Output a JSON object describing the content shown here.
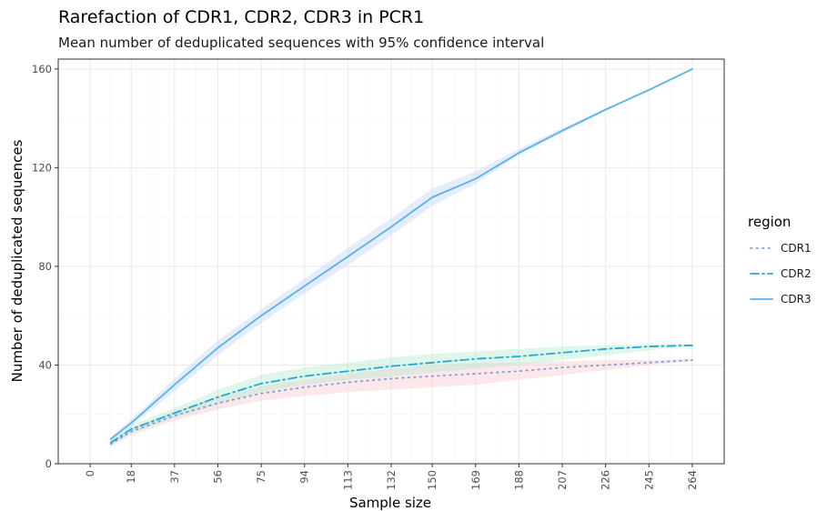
{
  "chart_data": {
    "type": "line",
    "title": "Rarefaction of CDR1, CDR2, CDR3 in PCR1",
    "subtitle": "Mean number of deduplicated sequences with 95% confidence interval",
    "xlabel": "Sample size",
    "ylabel": "Number of deduplicated sequences",
    "xlim": [
      -14,
      278
    ],
    "ylim": [
      0,
      164
    ],
    "x_ticks": [
      0,
      18,
      37,
      56,
      75,
      94,
      113,
      132,
      150,
      169,
      188,
      207,
      226,
      245,
      264
    ],
    "y_ticks": [
      0,
      40,
      80,
      120,
      160
    ],
    "grid": true,
    "legend": {
      "title": "region",
      "position": "right"
    },
    "colors": {
      "CDR1": "#7b9fd8",
      "CDR2": "#26a6d6",
      "CDR3": "#56b4e9"
    },
    "ribbon_colors": {
      "CDR1": "#f8cdd0",
      "CDR2": "#b9ecd0",
      "CDR3": "#c6d7fa"
    },
    "series": [
      {
        "name": "CDR1",
        "line_style": "dotted",
        "x": [
          9,
          18,
          37,
          56,
          75,
          94,
          113,
          132,
          150,
          169,
          188,
          207,
          226,
          245,
          264
        ],
        "y": [
          8,
          13,
          19.5,
          24.5,
          28.5,
          31,
          33,
          34.5,
          35.5,
          36.5,
          37.5,
          39,
          40,
          41,
          42
        ],
        "lower": [
          7,
          11.5,
          17.5,
          22,
          25.5,
          27.5,
          29,
          30,
          31,
          32,
          34,
          36,
          38,
          40,
          41.5
        ],
        "upper": [
          9,
          14.5,
          21.5,
          27,
          31.5,
          34,
          36.5,
          38.5,
          40,
          41,
          41,
          41.5,
          42,
          42,
          42.5
        ]
      },
      {
        "name": "CDR2",
        "line_style": "dashdot",
        "x": [
          9,
          18,
          37,
          56,
          75,
          94,
          113,
          132,
          150,
          169,
          188,
          207,
          226,
          245,
          264
        ],
        "y": [
          8.5,
          14,
          20.5,
          27,
          32.5,
          35.5,
          37.5,
          39.5,
          41,
          42.5,
          43.5,
          45,
          46.5,
          47.5,
          48
        ],
        "lower": [
          7.5,
          12.5,
          18.5,
          24,
          29,
          32,
          34,
          35.5,
          37,
          38.5,
          40,
          42,
          44,
          46,
          47.5
        ],
        "upper": [
          9.5,
          15.5,
          22.5,
          30,
          36,
          39,
          41,
          43,
          44.5,
          45.5,
          46.5,
          47.5,
          48,
          48.5,
          48.5
        ]
      },
      {
        "name": "CDR3",
        "line_style": "solid",
        "x": [
          9,
          18,
          37,
          56,
          75,
          94,
          113,
          132,
          150,
          169,
          188,
          207,
          226,
          245,
          264
        ],
        "y": [
          10,
          16.5,
          32,
          47,
          60,
          72,
          84,
          96,
          108,
          115.5,
          126,
          135,
          143.5,
          151.5,
          160
        ],
        "lower": [
          9,
          15,
          29.5,
          44,
          57,
          69,
          80.5,
          92.5,
          104.5,
          113.5,
          125,
          134,
          143,
          151.5,
          160
        ],
        "upper": [
          11,
          18,
          34.5,
          50,
          62.5,
          75,
          87.5,
          99.5,
          111.5,
          118.5,
          127.5,
          136,
          144,
          152,
          160
        ]
      }
    ]
  }
}
